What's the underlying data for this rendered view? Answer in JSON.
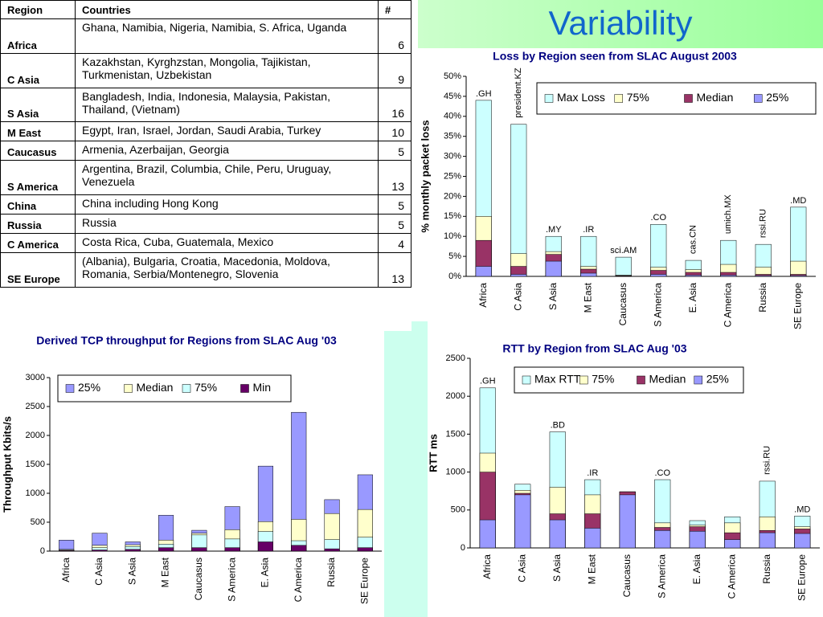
{
  "title": "Variability",
  "table": {
    "header": [
      "Region",
      "Countries",
      "#"
    ],
    "rows": [
      [
        "Africa",
        "Ghana, Namibia, Nigeria, Namibia, S. Africa, Uganda",
        6
      ],
      [
        "C Asia",
        "Kazakhstan, Kyrghzstan, Mongolia, Tajikistan, Turkmenistan, Uzbekistan",
        9
      ],
      [
        "S Asia",
        "Bangladesh, India, Indonesia, Malaysia, Pakistan, Thailand, (Vietnam)",
        16
      ],
      [
        "M East",
        "Egypt, Iran, Israel, Jordan, Saudi Arabia, Turkey",
        10
      ],
      [
        "Caucasus",
        "Armenia, Azerbaijan, Georgia",
        5
      ],
      [
        "S America",
        "Argentina, Brazil, Columbia, Chile, Peru, Uruguay, Venezuela",
        13
      ],
      [
        "China",
        "China including Hong Kong",
        5
      ],
      [
        "Russia",
        "Russia",
        5
      ],
      [
        "C America",
        "Costa Rica, Cuba, Guatemala, Mexico",
        4
      ],
      [
        "SE Europe",
        "(Albania), Bulgaria, Croatia, Macedonia, Moldova, Romania, Serbia/Montenegro, Slovenia",
        13
      ]
    ]
  },
  "chart_data": [
    {
      "type": "bar",
      "title": "Loss by Region seen from SLAC August 2003",
      "y_label": "%  monthly packet loss",
      "categories": [
        "Africa",
        "C Asia",
        "S Asia",
        "M East",
        "Caucasus",
        "S America",
        "E. Asia",
        "C America",
        "Russia",
        "SE Europe"
      ],
      "series": [
        {
          "name": "Max Loss",
          "color": "#ccffff",
          "values": [
            44,
            38,
            10,
            10,
            4.8,
            13,
            4,
            9,
            8,
            17.3
          ]
        },
        {
          "name": "75%",
          "color": "#ffffcc",
          "values": [
            15,
            5.7,
            6.2,
            2.5,
            0.3,
            2.3,
            1.7,
            3,
            2.3,
            3.8
          ]
        },
        {
          "name": "Median",
          "color": "#993366",
          "values": [
            9,
            2.5,
            5.5,
            1.8,
            0.2,
            1.5,
            1,
            1,
            0.5,
            0.5
          ]
        },
        {
          "name": "25%",
          "color": "#9999ff",
          "values": [
            2.5,
            0.5,
            3.8,
            0.8,
            0.1,
            0.5,
            0.3,
            0.3,
            0.2,
            0.2
          ]
        }
      ],
      "ylim": [
        0,
        50
      ],
      "yticks": [
        {
          "value": 0,
          "label": "0%"
        },
        {
          "value": 5,
          "label": "5%"
        },
        {
          "value": 10,
          "label": "10%"
        },
        {
          "value": 15,
          "label": "15%"
        },
        {
          "value": 20,
          "label": "20%"
        },
        {
          "value": 25,
          "label": "25%"
        },
        {
          "value": 30,
          "label": "30%"
        },
        {
          "value": 35,
          "label": "35%"
        },
        {
          "value": 40,
          "label": "40%"
        },
        {
          "value": 45,
          "label": "45%"
        },
        {
          "value": 50,
          "label": "50%"
        }
      ],
      "annotations": [
        ".GH",
        "president.KZ",
        ".MY",
        ".IR",
        "sci.AM",
        ".CO",
        "cas.CN",
        "umich.MX",
        "rssi.RU",
        ".MD"
      ]
    },
    {
      "type": "bar",
      "title": "Derived TCP throughput for Regions from SLAC Aug '03",
      "y_label": "Throughput Kbits/s",
      "categories": [
        "Africa",
        "C Asia",
        "S Asia",
        "M East",
        "Caucasus",
        "S America",
        "E. Asia",
        "C America",
        "Russia",
        "SE Europe"
      ],
      "series": [
        {
          "name": "25%",
          "color": "#9999ff",
          "values": [
            190,
            310,
            160,
            620,
            360,
            770,
            1470,
            2400,
            890,
            1320
          ]
        },
        {
          "name": "Median",
          "color": "#ffffcc",
          "values": [
            30,
            100,
            110,
            190,
            310,
            370,
            510,
            550,
            650,
            720
          ]
        },
        {
          "name": "75%",
          "color": "#ccffff",
          "values": [
            20,
            60,
            80,
            120,
            280,
            210,
            340,
            180,
            200,
            240
          ]
        },
        {
          "name": "Min",
          "color": "#660066",
          "values": [
            10,
            20,
            30,
            60,
            60,
            60,
            160,
            100,
            40,
            60
          ]
        }
      ],
      "ylim": [
        0,
        3000
      ],
      "yticks": [
        0,
        500,
        1000,
        1500,
        2000,
        2500,
        3000
      ]
    },
    {
      "type": "bar",
      "title": "RTT by Region from SLAC Aug '03",
      "y_label": "RTT ms",
      "categories": [
        "Africa",
        "C Asia",
        "S Asia",
        "M East",
        "Caucasus",
        "S America",
        "E. Asia",
        "C America",
        "Russia",
        "SE Europe"
      ],
      "series": [
        {
          "name": "Max RTT",
          "color": "#ccffff",
          "values": [
            2110,
            840,
            1530,
            900,
            740,
            900,
            360,
            410,
            880,
            420
          ]
        },
        {
          "name": "75%",
          "color": "#ffffcc",
          "values": [
            1250,
            760,
            800,
            700,
            740,
            330,
            300,
            330,
            410,
            280
          ]
        },
        {
          "name": "Median",
          "color": "#993366",
          "values": [
            1000,
            720,
            450,
            450,
            740,
            270,
            280,
            200,
            230,
            250
          ]
        },
        {
          "name": "25%",
          "color": "#9999ff",
          "values": [
            370,
            700,
            370,
            260,
            700,
            230,
            220,
            110,
            200,
            190
          ]
        }
      ],
      "ylim": [
        0,
        2500
      ],
      "yticks": [
        0,
        500,
        1000,
        1500,
        2000,
        2500
      ],
      "annotations": [
        ".GH",
        ".BD",
        ".IR",
        ".CO",
        "rssi.RU",
        ".MD"
      ]
    }
  ]
}
